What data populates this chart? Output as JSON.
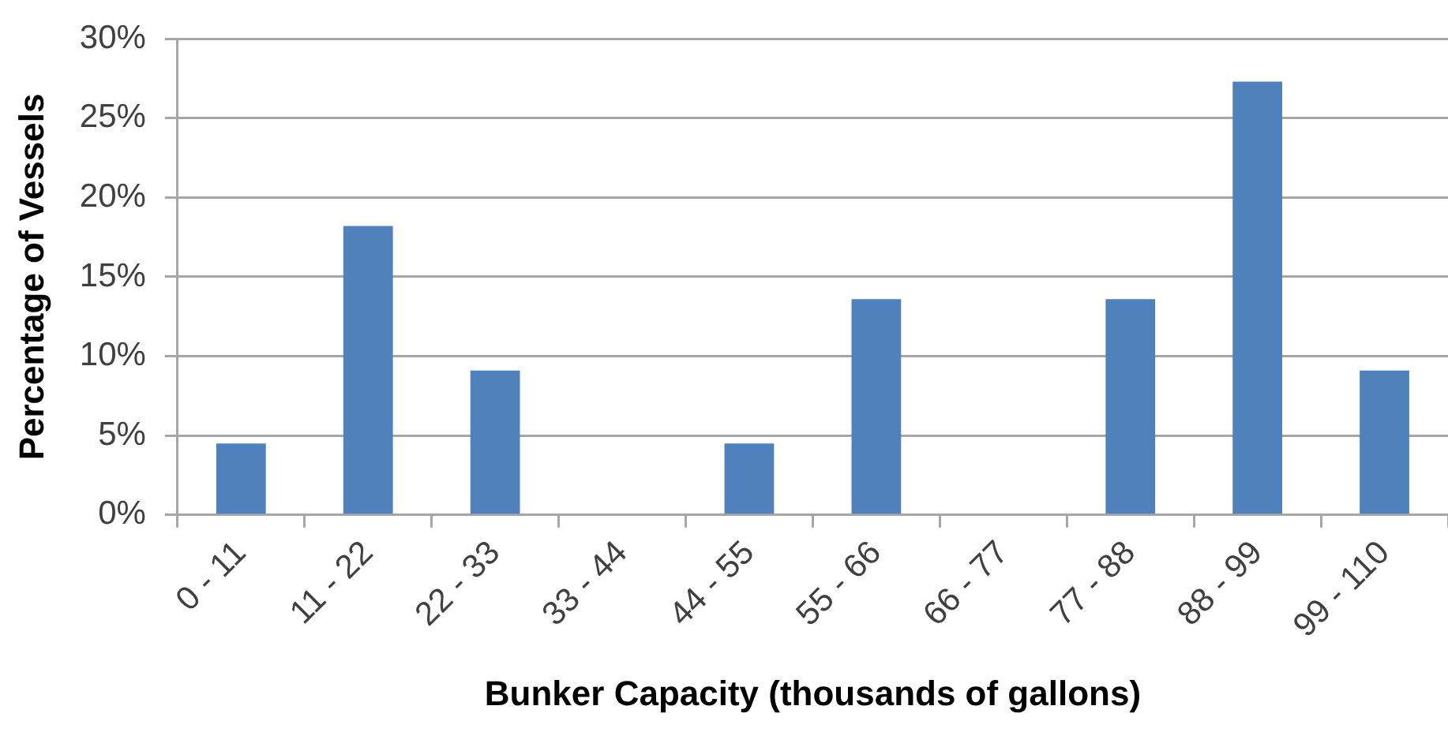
{
  "chart_data": {
    "type": "bar",
    "xlabel": "Bunker Capacity (thousands of gallons)",
    "ylabel": "Percentage of Vessels",
    "categories": [
      "0 - 11",
      "11 - 22",
      "22 - 33",
      "33 - 44",
      "44 - 55",
      "55 - 66",
      "66 - 77",
      "77 - 88",
      "88 - 99",
      "99 - 110"
    ],
    "values": [
      4.5,
      18.2,
      9.1,
      0,
      4.5,
      13.6,
      0,
      13.6,
      27.3,
      9.1
    ],
    "color": "#4f81bd",
    "ylim": [
      0,
      30
    ],
    "yticks": [
      {
        "value": 0,
        "label": "0%"
      },
      {
        "value": 5,
        "label": "5%"
      },
      {
        "value": 10,
        "label": "10%"
      },
      {
        "value": 15,
        "label": "15%"
      },
      {
        "value": 20,
        "label": "20%"
      },
      {
        "value": 25,
        "label": "25%"
      },
      {
        "value": 30,
        "label": "30%"
      }
    ],
    "grid": "y",
    "legend": false
  }
}
